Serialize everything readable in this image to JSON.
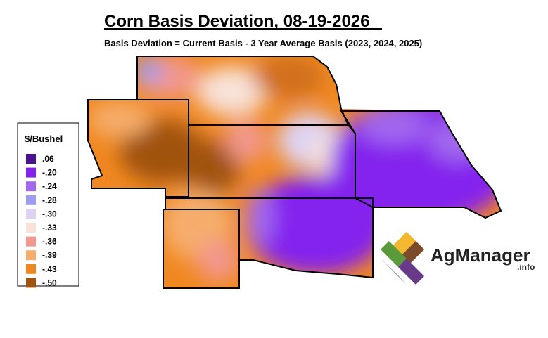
{
  "title": "Corn Basis Deviation, 08-19-2026",
  "subtitle": "Basis Deviation = Current Basis - 3 Year Average Basis (2023, 2024, 2025)",
  "legend": {
    "title": "$/Bushel",
    "items": [
      {
        "label": ".06",
        "color": "#4a1290"
      },
      {
        "label": "-.20",
        "color": "#8420ee"
      },
      {
        "label": "-.24",
        "color": "#a268ee"
      },
      {
        "label": "-.28",
        "color": "#9c9cf0"
      },
      {
        "label": "-.30",
        "color": "#ddd2f4"
      },
      {
        "label": "-.33",
        "color": "#f8e2d8"
      },
      {
        "label": "-.36",
        "color": "#f2978e"
      },
      {
        "label": "-.39",
        "color": "#f6ad6c"
      },
      {
        "label": "-.43",
        "color": "#f08822"
      },
      {
        "label": "-.50",
        "color": "#a0520e"
      }
    ]
  },
  "logo": {
    "name": "AgManager",
    "suffix": ".info"
  }
}
